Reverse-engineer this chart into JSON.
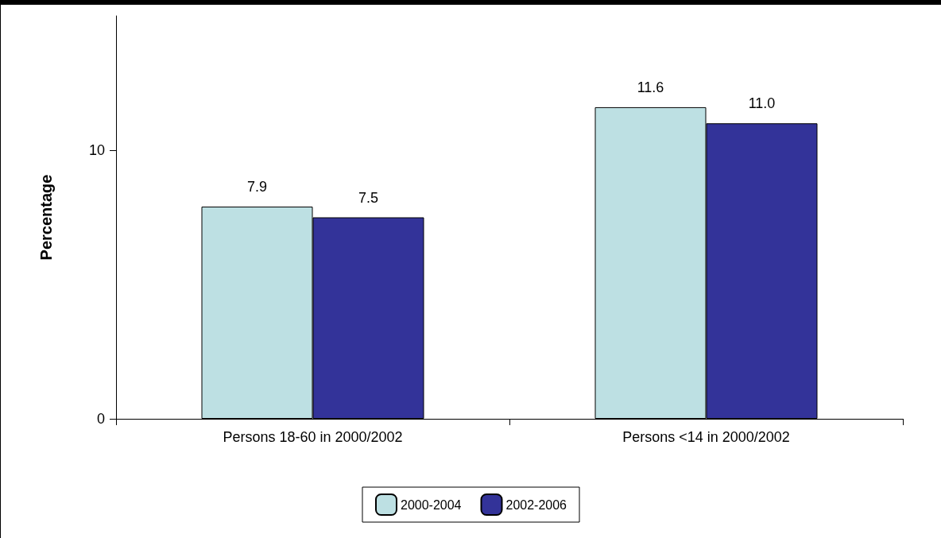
{
  "chart_data": {
    "type": "bar",
    "ylabel": "Percentage",
    "categories": [
      "Persons 18-60 in 2000/2002",
      "Persons <14 in 2000/2002"
    ],
    "series": [
      {
        "name": "2000-2004",
        "color": "#bde0e3",
        "values": [
          7.9,
          11.6
        ],
        "value_labels": [
          "7.9",
          "11.6"
        ]
      },
      {
        "name": "2002-2006",
        "color": "#333399",
        "values": [
          7.5,
          11.0
        ],
        "value_labels": [
          "7.5",
          "11.0"
        ]
      }
    ],
    "ylim": [
      0,
      15
    ],
    "yticks": [
      0,
      10
    ],
    "grid": false,
    "legend": "bottom"
  }
}
